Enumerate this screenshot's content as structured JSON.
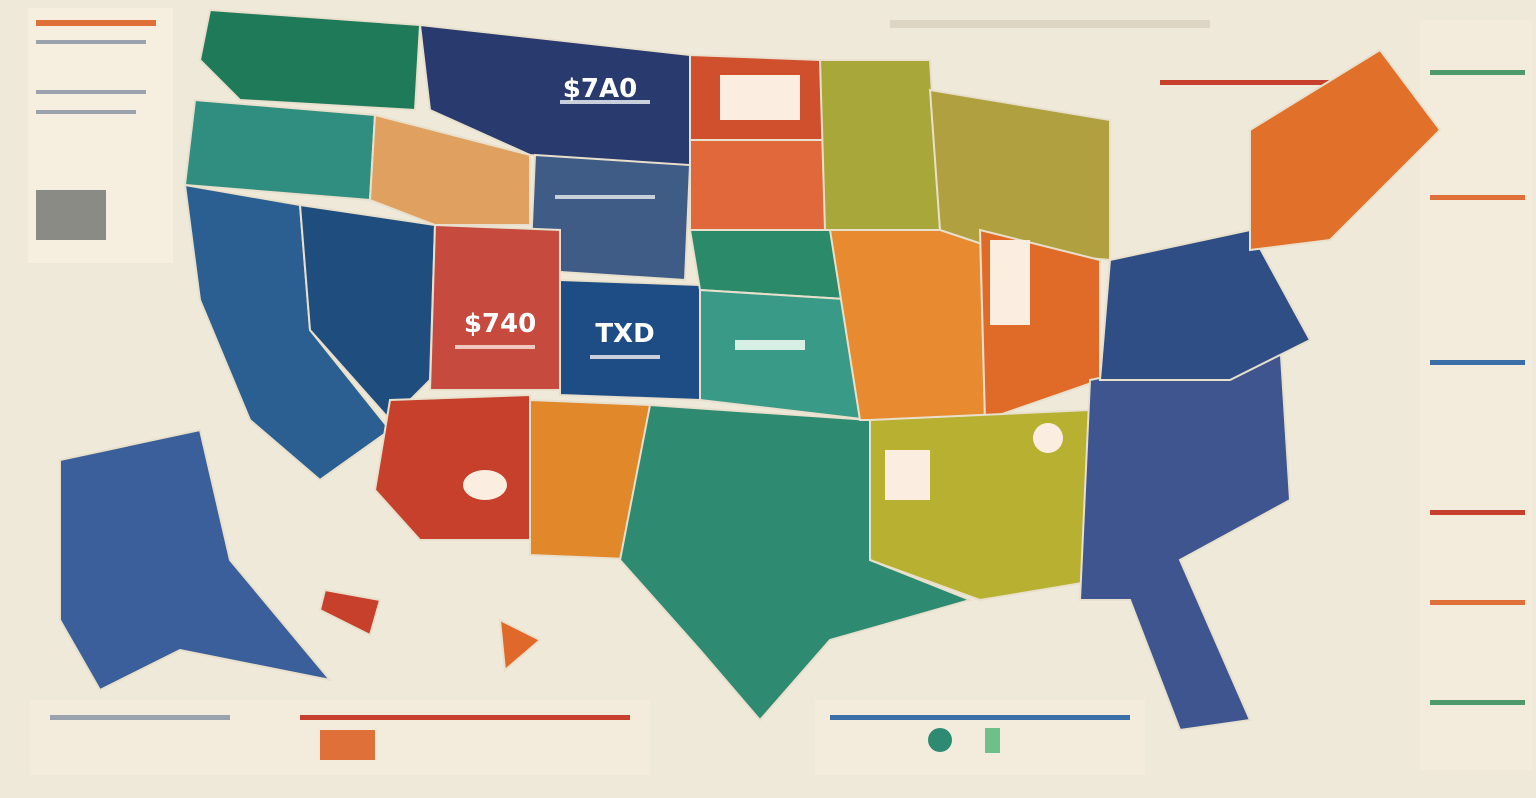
{
  "map": {
    "labels": [
      "$7A0",
      "$740",
      "TXD"
    ]
  }
}
